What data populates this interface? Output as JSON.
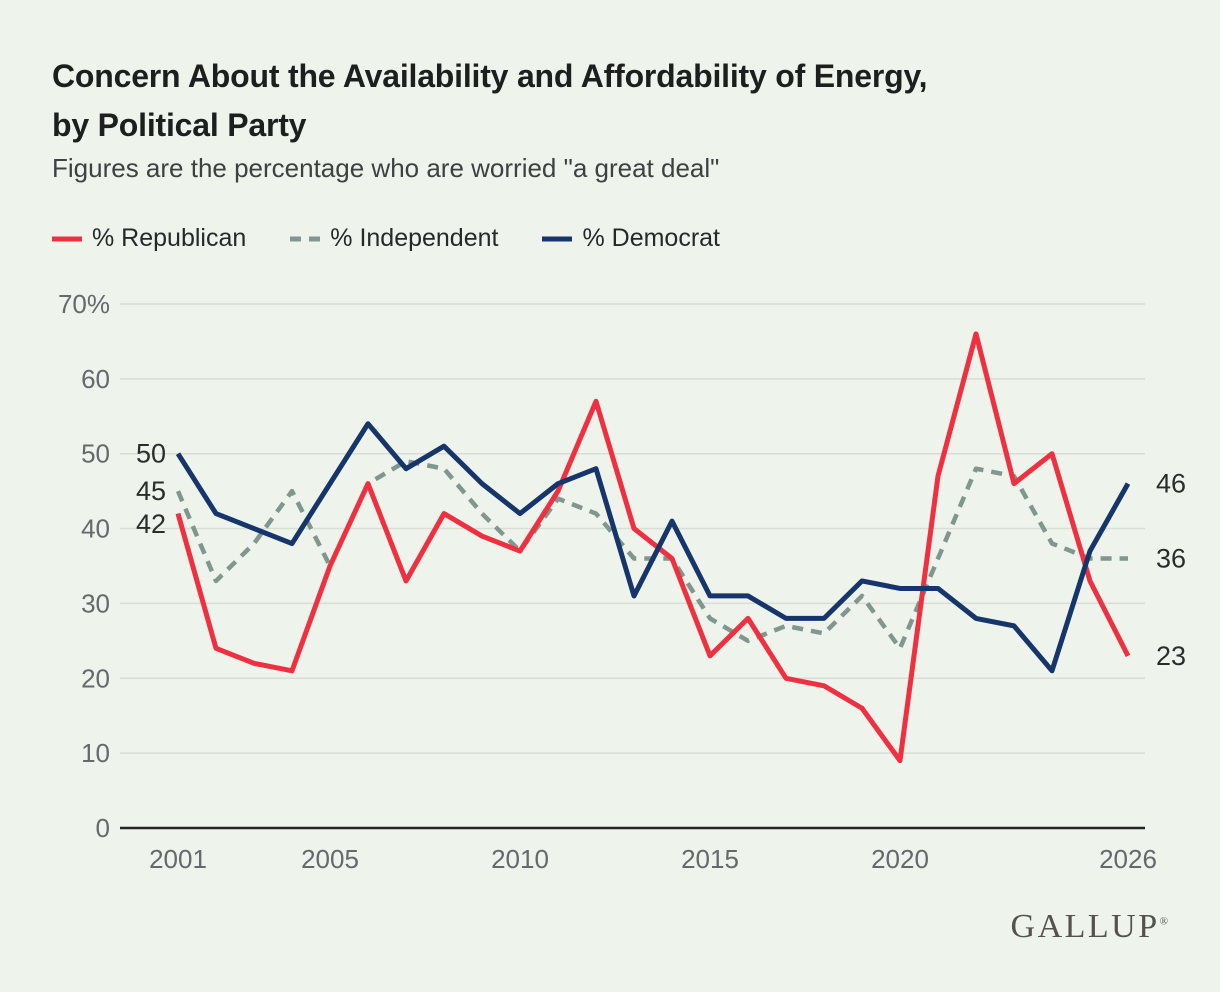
{
  "page": {
    "background": "#eef3ec"
  },
  "header": {
    "title_line1": "Concern About the Availability and Affordability of Energy,",
    "title_line2": "by Political Party",
    "subtitle": "Figures are the percentage who are worried \"a great deal\""
  },
  "legend": {
    "items": [
      {
        "label": "% Republican",
        "color": "#ef3040",
        "dash": false
      },
      {
        "label": "% Independent",
        "color": "#7f978f",
        "dash": true
      },
      {
        "label": "% Democrat",
        "color": "#16356a",
        "dash": false
      }
    ]
  },
  "chart_data": {
    "type": "line",
    "x": [
      2001,
      2002,
      2003,
      2004,
      2005,
      2006,
      2007,
      2008,
      2009,
      2010,
      2011,
      2012,
      2013,
      2014,
      2015,
      2016,
      2017,
      2018,
      2019,
      2020,
      2021,
      2022,
      2023,
      2024,
      2025,
      2026
    ],
    "series": [
      {
        "name": "% Republican",
        "color": "#ef3040",
        "dash": false,
        "values": [
          42,
          24,
          22,
          21,
          35,
          46,
          33,
          42,
          39,
          37,
          45,
          57,
          40,
          36,
          23,
          28,
          20,
          19,
          16,
          9,
          47,
          66,
          46,
          50,
          33,
          23
        ]
      },
      {
        "name": "% Independent",
        "color": "#7f978f",
        "dash": true,
        "values": [
          45,
          33,
          38,
          45,
          35,
          46,
          49,
          48,
          42,
          37,
          44,
          42,
          36,
          36,
          28,
          25,
          27,
          26,
          31,
          24,
          36,
          48,
          47,
          38,
          36,
          36
        ]
      },
      {
        "name": "% Democrat",
        "color": "#16356a",
        "dash": false,
        "values": [
          50,
          42,
          40,
          38,
          46,
          54,
          48,
          51,
          46,
          42,
          46,
          48,
          31,
          41,
          31,
          31,
          28,
          28,
          33,
          32,
          32,
          28,
          27,
          21,
          37,
          46
        ]
      }
    ],
    "draw_order": [
      1,
      0,
      2
    ],
    "ylim": [
      0,
      70
    ],
    "ytick_values": [
      70,
      60,
      50,
      40,
      30,
      20,
      10,
      0
    ],
    "ytick_labels": [
      "70%",
      "60",
      "50",
      "40",
      "30",
      "20",
      "10",
      "0"
    ],
    "xtick_values": [
      2001,
      2005,
      2010,
      2015,
      2020,
      2026
    ],
    "xtick_labels": [
      "2001",
      "2005",
      "2010",
      "2015",
      "2020",
      "2026"
    ],
    "grid": true,
    "legend_position": "top",
    "start_labels": [
      {
        "text": "50",
        "value": 50,
        "series": "% Democrat"
      },
      {
        "text": "45",
        "value": 45,
        "series": "% Independent"
      },
      {
        "text": "42",
        "value": 42,
        "series": "% Republican"
      }
    ],
    "end_labels": [
      {
        "text": "46",
        "value": 46,
        "series": "% Democrat"
      },
      {
        "text": "36",
        "value": 36,
        "series": "% Independent"
      },
      {
        "text": "23",
        "value": 23,
        "series": "% Republican"
      }
    ],
    "colors": {
      "gridline": "#d9ded3",
      "axis": "#232322",
      "tick_text": "#66696c",
      "annotation_text": "#2b2d2c"
    }
  },
  "branding": {
    "logo": "GALLUP",
    "registered_mark": "®"
  }
}
